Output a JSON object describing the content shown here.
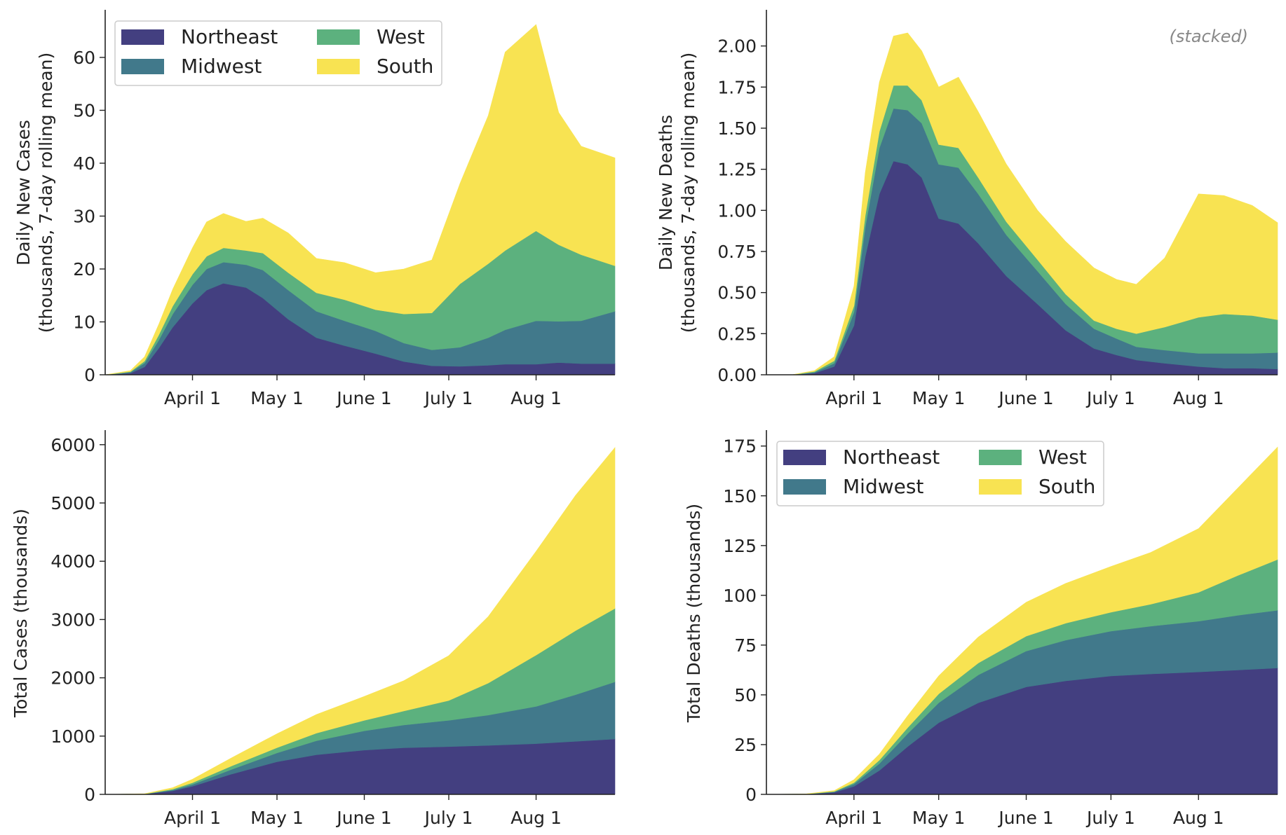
{
  "colors": {
    "Northeast": "#433f80",
    "Midwest": "#41798b",
    "West": "#5cb17e",
    "South": "#f8e352"
  },
  "x_axis": {
    "start": "2020-03-01",
    "end": "2020-08-29",
    "ticks": [
      {
        "date": "2020-04-01",
        "label": "April 1"
      },
      {
        "date": "2020-05-01",
        "label": "May 1"
      },
      {
        "date": "2020-06-01",
        "label": "June 1"
      },
      {
        "date": "2020-07-01",
        "label": "July 1"
      },
      {
        "date": "2020-08-01",
        "label": "Aug 1"
      }
    ]
  },
  "chart_data": [
    {
      "id": "daily-cases",
      "type": "area",
      "stacked": true,
      "ylabel": [
        "Daily New Cases",
        "(thousands, 7-day rolling mean)"
      ],
      "ylim": [
        0,
        69
      ],
      "yticks": [
        {
          "v": 0,
          "label": "0"
        },
        {
          "v": 10,
          "label": "10"
        },
        {
          "v": 20,
          "label": "20"
        },
        {
          "v": 30,
          "label": "30"
        },
        {
          "v": 40,
          "label": "40"
        },
        {
          "v": 50,
          "label": "50"
        },
        {
          "v": 60,
          "label": "60"
        }
      ],
      "legend": {
        "placement": "upper-left",
        "entries": [
          "Northeast",
          "West",
          "Midwest",
          "South"
        ]
      },
      "dates": [
        "2020-03-01",
        "2020-03-10",
        "2020-03-15",
        "2020-03-20",
        "2020-03-25",
        "2020-04-01",
        "2020-04-06",
        "2020-04-12",
        "2020-04-20",
        "2020-04-26",
        "2020-05-05",
        "2020-05-15",
        "2020-05-25",
        "2020-06-05",
        "2020-06-15",
        "2020-06-25",
        "2020-07-05",
        "2020-07-15",
        "2020-07-21",
        "2020-08-01",
        "2020-08-09",
        "2020-08-17",
        "2020-08-29"
      ],
      "series": [
        {
          "name": "Northeast",
          "values": [
            0,
            0.3,
            1.5,
            5,
            9,
            13.5,
            16,
            17.3,
            16.5,
            14.5,
            10.5,
            7,
            5.5,
            4,
            2.5,
            1.7,
            1.6,
            1.8,
            2.0,
            2.0,
            2.3,
            2.1,
            2.1
          ]
        },
        {
          "name": "Midwest",
          "values": [
            0,
            0.2,
            0.7,
            1.5,
            2.5,
            3.5,
            4,
            4,
            4.3,
            5.3,
            5.5,
            5,
            4.7,
            4.3,
            3.5,
            3,
            3.6,
            5.2,
            6.5,
            8.2,
            7.8,
            8.1,
            9.9
          ]
        },
        {
          "name": "West",
          "values": [
            0,
            0.1,
            0.4,
            1,
            1.5,
            2,
            2.4,
            2.7,
            2.7,
            3.2,
            3.3,
            3.5,
            4,
            4,
            5.5,
            7,
            12,
            14,
            15,
            17,
            14.5,
            12.5,
            8.6
          ]
        },
        {
          "name": "South",
          "values": [
            0,
            0.2,
            0.8,
            2,
            3.2,
            5,
            6.5,
            6.5,
            5.5,
            6.6,
            7.5,
            6.5,
            7,
            7,
            8.5,
            10,
            19,
            28,
            37.5,
            39,
            25,
            20.5,
            20.4
          ]
        }
      ]
    },
    {
      "id": "daily-deaths",
      "type": "area",
      "stacked": true,
      "ylabel": [
        "Daily New Deaths",
        "(thousands, 7-day rolling mean)"
      ],
      "ylim": [
        0,
        2.22
      ],
      "yticks": [
        {
          "v": 0,
          "label": "0.00"
        },
        {
          "v": 0.25,
          "label": "0.25"
        },
        {
          "v": 0.5,
          "label": "0.50"
        },
        {
          "v": 0.75,
          "label": "0.75"
        },
        {
          "v": 1.0,
          "label": "1.00"
        },
        {
          "v": 1.25,
          "label": "1.25"
        },
        {
          "v": 1.5,
          "label": "1.50"
        },
        {
          "v": 1.75,
          "label": "1.75"
        },
        {
          "v": 2.0,
          "label": "2.00"
        }
      ],
      "annotation": "(stacked)",
      "dates": [
        "2020-03-01",
        "2020-03-10",
        "2020-03-18",
        "2020-03-25",
        "2020-04-01",
        "2020-04-05",
        "2020-04-10",
        "2020-04-15",
        "2020-04-20",
        "2020-04-25",
        "2020-05-01",
        "2020-05-08",
        "2020-05-15",
        "2020-05-25",
        "2020-06-05",
        "2020-06-15",
        "2020-06-25",
        "2020-07-03",
        "2020-07-10",
        "2020-07-20",
        "2020-08-01",
        "2020-08-10",
        "2020-08-20",
        "2020-08-29"
      ],
      "series": [
        {
          "name": "Northeast",
          "values": [
            0,
            0,
            0.01,
            0.05,
            0.3,
            0.72,
            1.1,
            1.3,
            1.28,
            1.2,
            0.95,
            0.92,
            0.8,
            0.6,
            0.43,
            0.27,
            0.16,
            0.12,
            0.09,
            0.07,
            0.05,
            0.04,
            0.04,
            0.035
          ]
        },
        {
          "name": "Midwest",
          "values": [
            0,
            0,
            0.005,
            0.02,
            0.08,
            0.18,
            0.28,
            0.32,
            0.33,
            0.33,
            0.33,
            0.34,
            0.3,
            0.25,
            0.2,
            0.16,
            0.12,
            0.1,
            0.08,
            0.08,
            0.08,
            0.09,
            0.09,
            0.1
          ]
        },
        {
          "name": "West",
          "values": [
            0,
            0,
            0.005,
            0.015,
            0.04,
            0.07,
            0.1,
            0.14,
            0.15,
            0.14,
            0.12,
            0.12,
            0.1,
            0.08,
            0.07,
            0.06,
            0.05,
            0.06,
            0.08,
            0.14,
            0.22,
            0.24,
            0.23,
            0.2
          ]
        },
        {
          "name": "South",
          "values": [
            0,
            0,
            0.005,
            0.025,
            0.12,
            0.26,
            0.3,
            0.3,
            0.32,
            0.3,
            0.35,
            0.43,
            0.4,
            0.35,
            0.3,
            0.32,
            0.32,
            0.3,
            0.3,
            0.42,
            0.75,
            0.72,
            0.67,
            0.59
          ]
        }
      ]
    },
    {
      "id": "total-cases",
      "type": "area",
      "stacked": true,
      "ylabel": [
        "Total Cases (thousands)"
      ],
      "ylim": [
        0,
        6250
      ],
      "yticks": [
        {
          "v": 0,
          "label": "0"
        },
        {
          "v": 1000,
          "label": "1000"
        },
        {
          "v": 2000,
          "label": "2000"
        },
        {
          "v": 3000,
          "label": "3000"
        },
        {
          "v": 4000,
          "label": "4000"
        },
        {
          "v": 5000,
          "label": "5000"
        },
        {
          "v": 6000,
          "label": "6000"
        }
      ],
      "dates": [
        "2020-03-01",
        "2020-03-15",
        "2020-03-25",
        "2020-04-01",
        "2020-04-15",
        "2020-05-01",
        "2020-05-15",
        "2020-06-01",
        "2020-06-15",
        "2020-07-01",
        "2020-07-15",
        "2020-08-01",
        "2020-08-15",
        "2020-08-29"
      ],
      "series": [
        {
          "name": "Northeast",
          "values": [
            0,
            5,
            60,
            140,
            350,
            560,
            680,
            760,
            800,
            820,
            840,
            870,
            910,
            950
          ]
        },
        {
          "name": "Midwest",
          "values": [
            0,
            2,
            15,
            30,
            80,
            150,
            240,
            330,
            390,
            450,
            520,
            640,
            800,
            980
          ]
        },
        {
          "name": "West",
          "values": [
            0,
            2,
            15,
            30,
            60,
            90,
            130,
            180,
            240,
            340,
            550,
            880,
            1100,
            1260
          ]
        },
        {
          "name": "South",
          "values": [
            0,
            3,
            25,
            60,
            140,
            240,
            320,
            410,
            520,
            770,
            1140,
            1780,
            2320,
            2760
          ]
        }
      ]
    },
    {
      "id": "total-deaths",
      "type": "area",
      "stacked": true,
      "ylabel": [
        "Total Deaths (thousands)"
      ],
      "ylim": [
        0,
        183
      ],
      "yticks": [
        {
          "v": 0,
          "label": "0"
        },
        {
          "v": 25,
          "label": "25"
        },
        {
          "v": 50,
          "label": "50"
        },
        {
          "v": 75,
          "label": "75"
        },
        {
          "v": 100,
          "label": "100"
        },
        {
          "v": 125,
          "label": "125"
        },
        {
          "v": 150,
          "label": "150"
        },
        {
          "v": 175,
          "label": "175"
        }
      ],
      "legend": {
        "placement": "upper-left",
        "entries": [
          "Northeast",
          "West",
          "Midwest",
          "South"
        ]
      },
      "dates": [
        "2020-03-01",
        "2020-03-15",
        "2020-03-25",
        "2020-04-01",
        "2020-04-10",
        "2020-04-20",
        "2020-05-01",
        "2020-05-15",
        "2020-06-01",
        "2020-06-15",
        "2020-07-01",
        "2020-07-15",
        "2020-08-01",
        "2020-08-15",
        "2020-08-29"
      ],
      "series": [
        {
          "name": "Northeast",
          "values": [
            0,
            0.1,
            1,
            4,
            12,
            24,
            36,
            46,
            54,
            57,
            59.5,
            60.5,
            61.5,
            62.5,
            63.5
          ]
        },
        {
          "name": "Midwest",
          "values": [
            0,
            0.05,
            0.3,
            1.2,
            3.5,
            6.5,
            10,
            14,
            18,
            20.5,
            22.5,
            24,
            25.5,
            27.5,
            29
          ]
        },
        {
          "name": "West",
          "values": [
            0,
            0.05,
            0.2,
            0.7,
            1.7,
            3,
            4.5,
            6,
            7.5,
            8.5,
            9.5,
            11,
            14.5,
            20,
            25.5
          ]
        },
        {
          "name": "South",
          "values": [
            0,
            0.05,
            0.4,
            1.5,
            3,
            6,
            9,
            13,
            17,
            20,
            23,
            26,
            32,
            44,
            56.5
          ]
        }
      ]
    }
  ]
}
